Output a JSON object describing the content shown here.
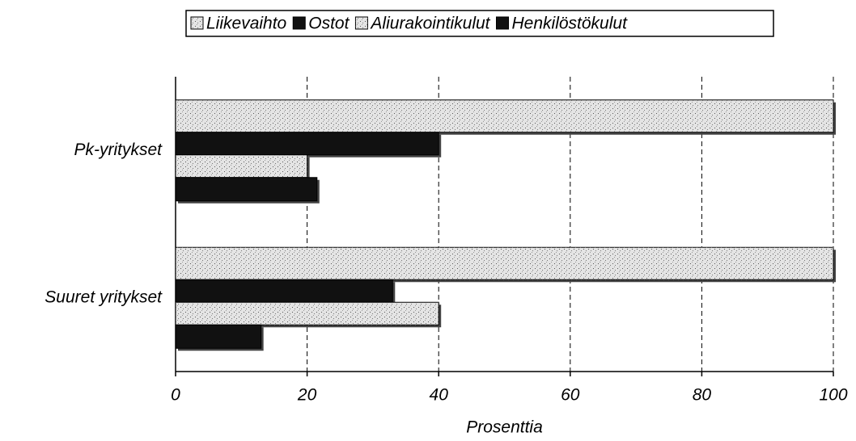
{
  "chart_data": {
    "type": "hbar",
    "categories": [
      "Pk-yritykset",
      "Suuret yritykset"
    ],
    "series": [
      {
        "name": "Liikevaihto",
        "color": "#e4e4e4",
        "values": [
          100,
          100
        ]
      },
      {
        "name": "Ostot",
        "color": "#111111",
        "values": [
          40,
          33
        ]
      },
      {
        "name": "Aliurakointikulut",
        "color": "#e4e4e4",
        "values": [
          20,
          40
        ]
      },
      {
        "name": "Henkilöstökulut",
        "color": "#111111",
        "values": [
          21.5,
          13
        ]
      }
    ],
    "xlabel": "Prosenttia",
    "xlim": [
      0,
      100
    ],
    "xticks": [
      0,
      20,
      40,
      60,
      80,
      100
    ],
    "grid": true,
    "legend": "top"
  }
}
